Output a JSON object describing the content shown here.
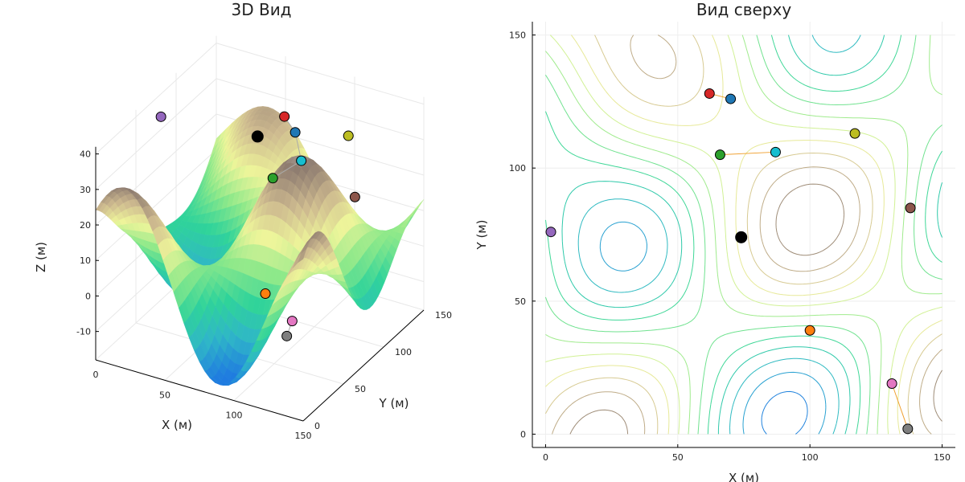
{
  "chart_data": [
    {
      "type": "surface",
      "title": "3D Вид",
      "xlabel": "X (м)",
      "ylabel": "Y (м)",
      "zlabel": "Z (м)",
      "xlim": [
        0,
        150
      ],
      "ylim": [
        0,
        150
      ],
      "zlim": [
        -18,
        42
      ],
      "xticks": [
        0,
        50,
        100,
        150
      ],
      "yticks": [
        0,
        50,
        100,
        150
      ],
      "zticks": [
        -10,
        0,
        10,
        20,
        30,
        40
      ],
      "grid": true,
      "colormap": [
        "#1f7be0",
        "#2fb6c8",
        "#2fd39a",
        "#8fe98a",
        "#eef59a",
        "#cdb98f",
        "#8e7c70",
        "#f2f2f2"
      ],
      "points": [
        {
          "name": "purple",
          "x": 3,
          "y": 76,
          "z": 35,
          "color": "#9467bd"
        },
        {
          "name": "black",
          "x": 74,
          "y": 74,
          "z": 38,
          "color": "#000000"
        },
        {
          "name": "red",
          "x": 62,
          "y": 128,
          "z": 31,
          "color": "#d62728"
        },
        {
          "name": "blue",
          "x": 71,
          "y": 126,
          "z": 28,
          "color": "#1f77b4"
        },
        {
          "name": "green",
          "x": 67,
          "y": 105,
          "z": 19,
          "color": "#2ca02c"
        },
        {
          "name": "cyan",
          "x": 87,
          "y": 106,
          "z": 26,
          "color": "#17becf"
        },
        {
          "name": "olive",
          "x": 117,
          "y": 113,
          "z": 35,
          "color": "#bcbd22"
        },
        {
          "name": "brown",
          "x": 138,
          "y": 85,
          "z": 26,
          "color": "#8c564b"
        },
        {
          "name": "orange",
          "x": 100,
          "y": 39,
          "z": 4,
          "color": "#ff7f0e"
        },
        {
          "name": "pink",
          "x": 131,
          "y": 19,
          "z": 4,
          "color": "#e377c2"
        },
        {
          "name": "gray",
          "x": 137,
          "y": 2,
          "z": 4,
          "color": "#7f7f7f"
        }
      ],
      "path": [
        "red",
        "blue",
        "cyan",
        "green"
      ],
      "path2": [
        "gray",
        "pink"
      ]
    },
    {
      "type": "contour",
      "title": "Вид сверху",
      "xlabel": "X (м)",
      "ylabel": "Y (м)",
      "xlim": [
        -5,
        155
      ],
      "ylim": [
        -5,
        155
      ],
      "xticks": [
        0,
        50,
        100,
        150
      ],
      "yticks": [
        0,
        50,
        100,
        150
      ],
      "grid": true,
      "colormap": [
        "#1f7be0",
        "#2fb6c8",
        "#2fd39a",
        "#8fe98a",
        "#eef59a",
        "#cdb98f",
        "#8e7c70",
        "#f2f2f2"
      ],
      "points": [
        {
          "name": "red",
          "x": 62,
          "y": 128,
          "color": "#d62728"
        },
        {
          "name": "blue",
          "x": 70,
          "y": 126,
          "color": "#1f77b4"
        },
        {
          "name": "olive",
          "x": 117,
          "y": 113,
          "color": "#bcbd22"
        },
        {
          "name": "green",
          "x": 66,
          "y": 105,
          "color": "#2ca02c"
        },
        {
          "name": "cyan",
          "x": 87,
          "y": 106,
          "color": "#17becf"
        },
        {
          "name": "brown",
          "x": 138,
          "y": 85,
          "color": "#8c564b"
        },
        {
          "name": "purple",
          "x": 2,
          "y": 76,
          "color": "#9467bd"
        },
        {
          "name": "black",
          "x": 74,
          "y": 74,
          "color": "#000000"
        },
        {
          "name": "orange",
          "x": 100,
          "y": 39,
          "color": "#ff7f0e"
        },
        {
          "name": "pink",
          "x": 131,
          "y": 19,
          "color": "#e377c2"
        },
        {
          "name": "gray",
          "x": 137,
          "y": 2,
          "color": "#7f7f7f"
        }
      ],
      "path": [
        "red",
        "blue"
      ],
      "path2": [
        "green",
        "cyan"
      ],
      "path3": [
        "pink",
        "gray"
      ]
    }
  ]
}
